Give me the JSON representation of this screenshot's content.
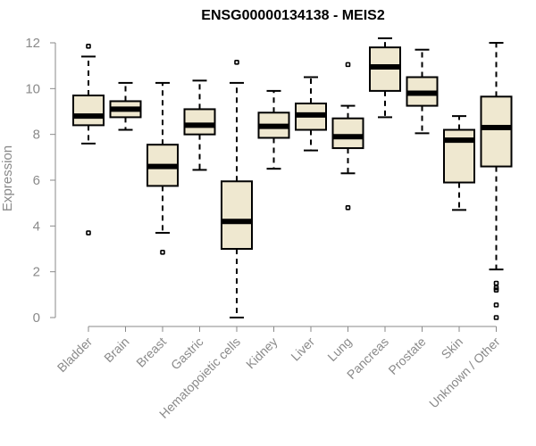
{
  "chart_data": {
    "type": "boxplot",
    "title": "ENSG00000134138 - MEIS2",
    "xlabel": "",
    "ylabel": "Expression",
    "ylim": [
      0,
      12
    ],
    "yticks": [
      0,
      2,
      4,
      6,
      8,
      10,
      12
    ],
    "box_color": "#efe8d0",
    "categories": [
      "Bladder",
      "Brain",
      "Breast",
      "Gastric",
      "Hematopoietic cells",
      "Kidney",
      "Liver",
      "Lung",
      "Pancreas",
      "Prostate",
      "Skin",
      "Unknown / Other"
    ],
    "boxes": [
      {
        "whisker_low": 7.6,
        "q1": 8.4,
        "median": 8.8,
        "q3": 9.7,
        "whisker_high": 11.4,
        "outliers": [
          3.7,
          11.85
        ]
      },
      {
        "whisker_low": 8.2,
        "q1": 8.75,
        "median": 9.1,
        "q3": 9.45,
        "whisker_high": 10.25,
        "outliers": []
      },
      {
        "whisker_low": 3.7,
        "q1": 5.75,
        "median": 6.6,
        "q3": 7.55,
        "whisker_high": 10.25,
        "outliers": [
          2.85
        ]
      },
      {
        "whisker_low": 6.45,
        "q1": 8.0,
        "median": 8.4,
        "q3": 9.1,
        "whisker_high": 10.35,
        "outliers": []
      },
      {
        "whisker_low": 0.0,
        "q1": 3.0,
        "median": 4.2,
        "q3": 5.95,
        "whisker_high": 10.25,
        "outliers": [
          11.15
        ]
      },
      {
        "whisker_low": 6.5,
        "q1": 7.85,
        "median": 8.35,
        "q3": 8.95,
        "whisker_high": 9.9,
        "outliers": []
      },
      {
        "whisker_low": 7.3,
        "q1": 8.2,
        "median": 8.85,
        "q3": 9.35,
        "whisker_high": 10.5,
        "outliers": []
      },
      {
        "whisker_low": 6.3,
        "q1": 7.4,
        "median": 7.9,
        "q3": 8.7,
        "whisker_high": 9.25,
        "outliers": [
          4.8,
          11.05
        ]
      },
      {
        "whisker_low": 8.75,
        "q1": 9.9,
        "median": 10.95,
        "q3": 11.8,
        "whisker_high": 12.2,
        "outliers": []
      },
      {
        "whisker_low": 8.05,
        "q1": 9.25,
        "median": 9.8,
        "q3": 10.5,
        "whisker_high": 11.7,
        "outliers": []
      },
      {
        "whisker_low": 4.7,
        "q1": 5.9,
        "median": 7.75,
        "q3": 8.2,
        "whisker_high": 8.8,
        "outliers": []
      },
      {
        "whisker_low": 2.1,
        "q1": 6.6,
        "median": 8.3,
        "q3": 9.65,
        "whisker_high": 12.0,
        "outliers": [
          1.5,
          1.3,
          1.2,
          0.55,
          0.0
        ]
      }
    ]
  }
}
